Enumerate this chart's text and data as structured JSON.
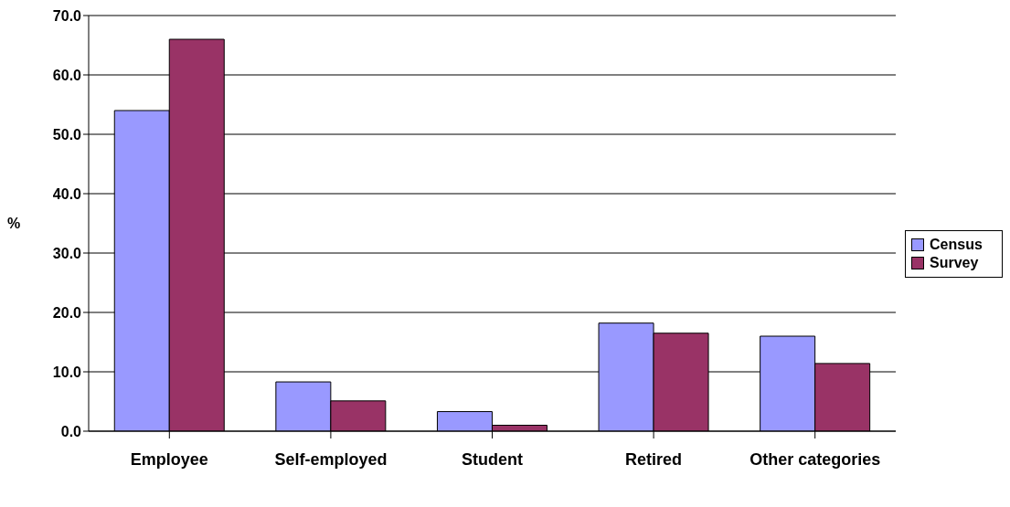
{
  "chart_data": {
    "type": "bar",
    "ylabel": "%",
    "categories": [
      "Employee",
      "Self-employed",
      "Student",
      "Retired",
      "Other categories"
    ],
    "series": [
      {
        "name": "Census",
        "color": "#9999ff",
        "values": [
          54.0,
          8.3,
          3.3,
          18.2,
          16.0
        ]
      },
      {
        "name": "Survey",
        "color": "#993366",
        "values": [
          66.0,
          5.1,
          1.0,
          16.5,
          11.4
        ]
      }
    ],
    "ylim": [
      0,
      70
    ],
    "yticks": [
      {
        "value": 0,
        "label": "0.0"
      },
      {
        "value": 10,
        "label": "10.0"
      },
      {
        "value": 20,
        "label": "20.0"
      },
      {
        "value": 30,
        "label": "30.0"
      },
      {
        "value": 40,
        "label": "40.0"
      },
      {
        "value": 50,
        "label": "50.0"
      },
      {
        "value": 60,
        "label": "60.0"
      },
      {
        "value": 70,
        "label": "70.0"
      }
    ],
    "grid": "y",
    "legend": "right"
  }
}
